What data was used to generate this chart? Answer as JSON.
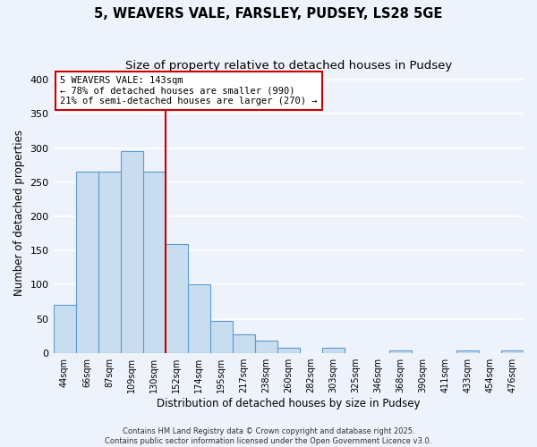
{
  "title": "5, WEAVERS VALE, FARSLEY, PUDSEY, LS28 5GE",
  "subtitle": "Size of property relative to detached houses in Pudsey",
  "xlabel": "Distribution of detached houses by size in Pudsey",
  "ylabel": "Number of detached properties",
  "bin_labels": [
    "44sqm",
    "66sqm",
    "87sqm",
    "109sqm",
    "130sqm",
    "152sqm",
    "174sqm",
    "195sqm",
    "217sqm",
    "238sqm",
    "260sqm",
    "282sqm",
    "303sqm",
    "325sqm",
    "346sqm",
    "368sqm",
    "390sqm",
    "411sqm",
    "433sqm",
    "454sqm",
    "476sqm"
  ],
  "bar_values": [
    70,
    265,
    265,
    295,
    265,
    160,
    100,
    47,
    27,
    18,
    8,
    0,
    8,
    0,
    0,
    3,
    0,
    0,
    3,
    0,
    3
  ],
  "bar_color": "#c9ddf0",
  "bar_edge_color": "#5b9bd5",
  "vline_x": 5.0,
  "vline_color": "#cc0000",
  "annotation_text": "5 WEAVERS VALE: 143sqm\n← 78% of detached houses are smaller (990)\n21% of semi-detached houses are larger (270) →",
  "annotation_box_color": "#ffffff",
  "annotation_box_edge": "#cc0000",
  "ylim": [
    0,
    410
  ],
  "yticks": [
    0,
    50,
    100,
    150,
    200,
    250,
    300,
    350,
    400
  ],
  "footer1": "Contains HM Land Registry data © Crown copyright and database right 2025.",
  "footer2": "Contains public sector information licensed under the Open Government Licence v3.0.",
  "background_color": "#eef2fa",
  "grid_color": "#ffffff",
  "title_fontsize": 10.5,
  "subtitle_fontsize": 9.5,
  "axis_label_fontsize": 8.5,
  "tick_fontsize": 8,
  "annot_fontsize": 7.5,
  "footer_fontsize": 6.0
}
